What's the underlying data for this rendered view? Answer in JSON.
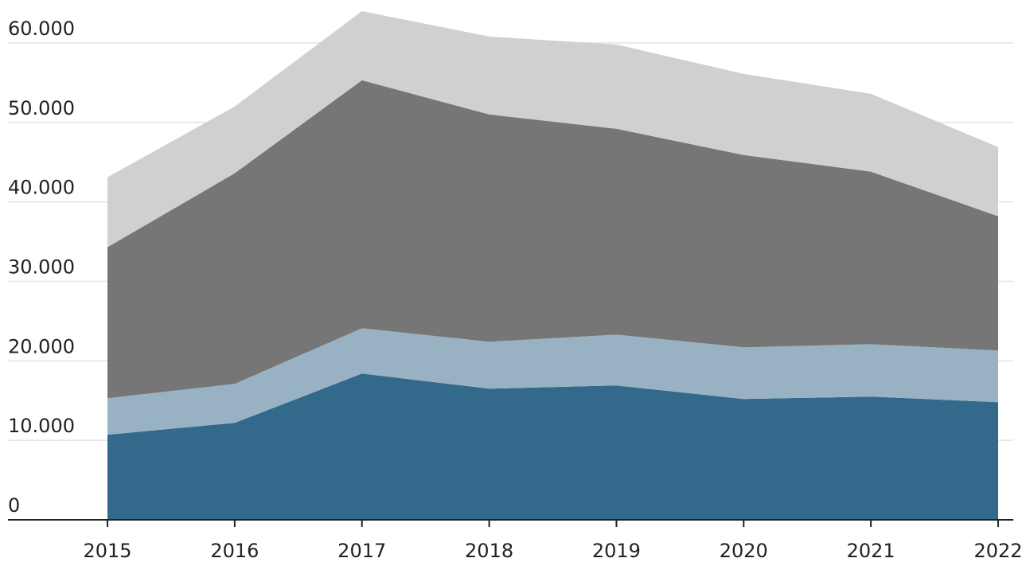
{
  "chart_data": {
    "type": "stacked_area",
    "categories": [
      "2015",
      "2016",
      "2017",
      "2018",
      "2019",
      "2020",
      "2021",
      "2022"
    ],
    "series": [
      {
        "color": "#336a8c",
        "values": [
          10700,
          12200,
          18400,
          16500,
          16900,
          15200,
          15500,
          14800
        ]
      },
      {
        "color": "#98b2c4",
        "values": [
          4600,
          4900,
          5700,
          5900,
          6400,
          6500,
          6600,
          6500
        ]
      },
      {
        "color": "#767676",
        "values": [
          19000,
          26500,
          31200,
          28600,
          25900,
          24200,
          21700,
          16900
        ]
      },
      {
        "color": "#d0d0d0",
        "values": [
          8800,
          8400,
          8700,
          9800,
          10600,
          10200,
          9800,
          8700
        ]
      }
    ],
    "ylim": [
      0,
      65000
    ],
    "yticks": [
      0,
      {
        "value": 10000,
        "label": "10.000"
      },
      {
        "value": 20000,
        "label": "20.000"
      },
      {
        "value": 30000,
        "label": "30.000"
      },
      {
        "value": 40000,
        "label": "40.000"
      },
      {
        "value": 50000,
        "label": "50.000"
      },
      {
        "value": 60000,
        "label": "60.000"
      }
    ],
    "grid": true
  }
}
